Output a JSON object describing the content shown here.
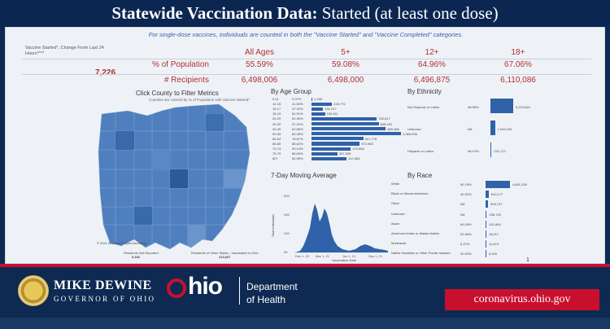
{
  "header": {
    "title_bold": "Statewide Vaccination Data:",
    "title_rest": " Started (at least one dose)"
  },
  "note": "For single-dose vaccines, individuals are counted in both the \"Vaccine Started\" and \"Vaccine Completed\" categories.",
  "summary": {
    "change_label": "Vaccine Started*, Change From Last 24 Hours****",
    "change_value": "7,226",
    "columns": [
      "All Ages",
      "5+",
      "12+",
      "18+"
    ],
    "rows": [
      {
        "label": "% of Population",
        "values": [
          "55.59%",
          "59.08%",
          "64.96%",
          "67.06%"
        ]
      },
      {
        "label": "# Recipients",
        "values": [
          "6,498,006",
          "6,498,000",
          "6,496,875",
          "6,110,086"
        ]
      }
    ]
  },
  "map": {
    "title": "Click County to Filter Metrics",
    "subtitle": "Counties are colored by % of Population with Vaccine Started*",
    "attribution": "© 2021 Mapbox © OpenStreetMap",
    "stat1_label": "Residents Not Reported",
    "stat1_value": "9,166",
    "stat2_label": "Residents of Other States - Vaccinated in Ohio",
    "stat2_value": "213,667"
  },
  "age": {
    "title": "By Age Group",
    "rows": [
      {
        "label": "0-11",
        "pct": "0.07%",
        "value": "1,159",
        "frac": 0.001
      },
      {
        "label": "12-15",
        "pct": "41.54%",
        "value": "245,772",
        "frac": 0.23
      },
      {
        "label": "16-17",
        "pct": "47.32%",
        "value": "141,017",
        "frac": 0.13
      },
      {
        "label": "18-19",
        "pct": "51.91%",
        "value": "160,311",
        "frac": 0.15
      },
      {
        "label": "20-29",
        "pct": "50.35%",
        "value": "782,617",
        "frac": 0.73
      },
      {
        "label": "30-39",
        "pct": "57.02%",
        "value": "805,192",
        "frac": 0.75
      },
      {
        "label": "40-49",
        "pct": "62.86%",
        "value": "889,488",
        "frac": 0.83
      },
      {
        "label": "50-59",
        "pct": "69.35%",
        "value": "1,066,936",
        "frac": 1.0
      },
      {
        "label": "60-64",
        "pct": "78.67%",
        "value": "621,776",
        "frac": 0.58
      },
      {
        "label": "65-69",
        "pct": "85.62%",
        "value": "572,963",
        "frac": 0.54
      },
      {
        "label": "70-74",
        "pct": "90.14%",
        "value": "470,882",
        "frac": 0.44
      },
      {
        "label": "75-79",
        "pct": "86.69%",
        "value": "307,535",
        "frac": 0.29
      },
      {
        "label": "80+",
        "pct": "82.58%",
        "value": "412,464",
        "frac": 0.39
      }
    ]
  },
  "ethnicity": {
    "title": "By Ethnicity",
    "rows": [
      {
        "label": "Not Hispanic or Latino",
        "pct": "48.58%",
        "value": "5,223,640",
        "frac": 1.0
      },
      {
        "label": "Unknown",
        "pct": "NA",
        "value": "1,043,194",
        "frac": 0.2
      },
      {
        "label": "Hispanic or Latino",
        "pct": "48.14%",
        "value": "231,172",
        "frac": 0.045
      }
    ]
  },
  "moving_avg": {
    "title": "7-Day Moving Average",
    "ylabel": "Total individuals",
    "xlabel": "Vaccination Date",
    "yticks": [
      "60K",
      "40K",
      "20K",
      "0K"
    ],
    "xticks": [
      "Dec 1, 20",
      "Mar 1, 21",
      "Jun 1, 21",
      "Sep 1, 21"
    ]
  },
  "race": {
    "title": "By Race",
    "rows": [
      {
        "label": "White",
        "pct": "50.78%",
        "value": "4,851,259",
        "frac": 1.0
      },
      {
        "label": "Black or African American",
        "pct": "40.32%",
        "value": "610,177",
        "frac": 0.126
      },
      {
        "label": "Other",
        "pct": "NA",
        "value": "509,747",
        "frac": 0.105
      },
      {
        "label": "Unknown",
        "pct": "NA",
        "value": "236,742",
        "frac": 0.049
      },
      {
        "label": "Asian",
        "pct": "69.28%",
        "value": "201,864",
        "frac": 0.042
      },
      {
        "label": "American Indian or Alaska Native",
        "pct": "52.98%",
        "value": "18,017",
        "frac": 0.004
      },
      {
        "label": "Multiracial",
        "pct": "5.27%",
        "value": "14,873",
        "frac": 0.003
      },
      {
        "label": "Native Hawaiian or Other Pacific Islander",
        "pct": "92.53%",
        "value": "6,526",
        "frac": 0.0013
      }
    ]
  },
  "page_number": "1",
  "footer": {
    "governor_name": "MIKE DEWINE",
    "governor_title": "GOVERNOR OF OHIO",
    "ohio": "hio",
    "dept_line1": "Department",
    "dept_line2": "of Health",
    "website": "coronavirus.ohio.gov"
  },
  "colors": {
    "accent_red": "#c8102e",
    "navy": "#0e2a52",
    "bar_blue": "#2f62a8",
    "value_red": "#b03030"
  }
}
